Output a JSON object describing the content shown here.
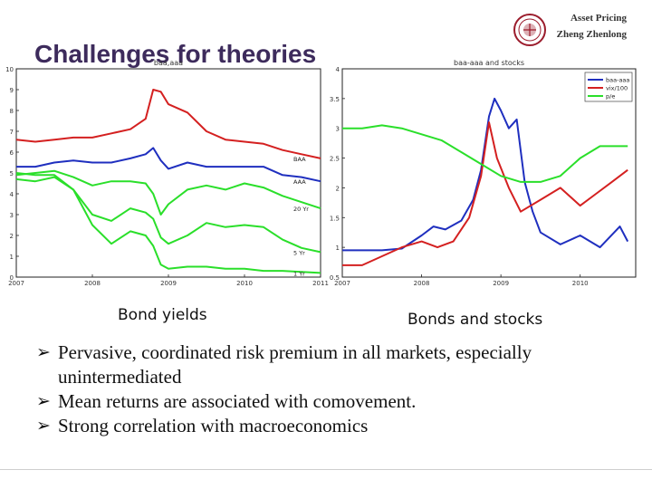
{
  "header": {
    "course": "Asset Pricing",
    "author": "Zheng Zhenlong"
  },
  "title": "Challenges for theories",
  "captions": {
    "left": "Bond yields",
    "right": "Bonds and stocks"
  },
  "bullets": [
    "Pervasive, coordinated risk premium in all markets, especially unintermediated",
    "Mean returns are associated with comovement.",
    "Strong correlation with macroeconomics"
  ],
  "colors": {
    "title": "#3d2b5c",
    "red": "#d42020",
    "blue": "#1f2fbf",
    "green": "#2adf2a"
  },
  "chart_data": [
    {
      "type": "line",
      "title": "baa,aaa",
      "x_ticks": [
        "2007",
        "2008",
        "2009",
        "2010",
        "2011"
      ],
      "ylim": [
        0,
        10
      ],
      "y_ticks": [
        "0",
        "1",
        "2",
        "3",
        "4",
        "5",
        "6",
        "7",
        "8",
        "9",
        "10"
      ],
      "series": [
        {
          "name": "BAA",
          "color": "#d42020",
          "x": [
            2007.0,
            2007.25,
            2007.5,
            2007.75,
            2008.0,
            2008.25,
            2008.5,
            2008.7,
            2008.8,
            2008.9,
            2009.0,
            2009.25,
            2009.5,
            2009.75,
            2010.0,
            2010.25,
            2010.5,
            2010.75,
            2011.0
          ],
          "values": [
            6.6,
            6.5,
            6.6,
            6.7,
            6.7,
            6.9,
            7.1,
            7.6,
            9.0,
            8.9,
            8.3,
            7.9,
            7.0,
            6.6,
            6.5,
            6.4,
            6.1,
            5.9,
            5.7
          ]
        },
        {
          "name": "AAA",
          "color": "#1f2fbf",
          "x": [
            2007.0,
            2007.25,
            2007.5,
            2007.75,
            2008.0,
            2008.25,
            2008.5,
            2008.7,
            2008.8,
            2008.9,
            2009.0,
            2009.25,
            2009.5,
            2009.75,
            2010.0,
            2010.25,
            2010.5,
            2010.75,
            2011.0
          ],
          "values": [
            5.3,
            5.3,
            5.5,
            5.6,
            5.5,
            5.5,
            5.7,
            5.9,
            6.2,
            5.6,
            5.2,
            5.5,
            5.3,
            5.3,
            5.3,
            5.3,
            4.9,
            4.8,
            4.6
          ]
        },
        {
          "name": "20 Yr",
          "color": "#2adf2a",
          "x": [
            2007.0,
            2007.25,
            2007.5,
            2007.75,
            2008.0,
            2008.25,
            2008.5,
            2008.7,
            2008.8,
            2008.9,
            2009.0,
            2009.25,
            2009.5,
            2009.75,
            2010.0,
            2010.25,
            2010.5,
            2010.75,
            2011.0
          ],
          "values": [
            4.9,
            5.0,
            5.1,
            4.8,
            4.4,
            4.6,
            4.6,
            4.5,
            4.0,
            3.0,
            3.5,
            4.2,
            4.4,
            4.2,
            4.5,
            4.3,
            3.9,
            3.6,
            3.3
          ]
        },
        {
          "name": "5 Yr",
          "color": "#2adf2a",
          "x": [
            2007.0,
            2007.25,
            2007.5,
            2007.75,
            2008.0,
            2008.25,
            2008.5,
            2008.7,
            2008.8,
            2008.9,
            2009.0,
            2009.25,
            2009.5,
            2009.75,
            2010.0,
            2010.25,
            2010.5,
            2010.75,
            2011.0
          ],
          "values": [
            4.7,
            4.6,
            4.8,
            4.2,
            3.0,
            2.7,
            3.3,
            3.1,
            2.8,
            1.9,
            1.6,
            2.0,
            2.6,
            2.4,
            2.5,
            2.4,
            1.8,
            1.4,
            1.2
          ]
        },
        {
          "name": "1 Yr",
          "color": "#2adf2a",
          "x": [
            2007.0,
            2007.25,
            2007.5,
            2007.75,
            2008.0,
            2008.25,
            2008.5,
            2008.7,
            2008.8,
            2008.9,
            2009.0,
            2009.25,
            2009.5,
            2009.75,
            2010.0,
            2010.25,
            2010.5,
            2010.75,
            2011.0
          ],
          "values": [
            5.0,
            4.9,
            4.9,
            4.2,
            2.5,
            1.6,
            2.2,
            2.0,
            1.5,
            0.6,
            0.4,
            0.5,
            0.5,
            0.4,
            0.4,
            0.3,
            0.3,
            0.25,
            0.2
          ]
        }
      ]
    },
    {
      "type": "line",
      "title": "baa-aaa and stocks",
      "x_ticks": [
        "2007",
        "2008",
        "2009",
        "2010"
      ],
      "ylim": [
        0.5,
        4
      ],
      "y_ticks": [
        "0.5",
        "1",
        "1.5",
        "2",
        "2.5",
        "3",
        "3.5",
        "4"
      ],
      "series": [
        {
          "name": "baa-aaa",
          "color": "#1f2fbf",
          "x": [
            2007.0,
            2007.25,
            2007.5,
            2007.75,
            2008.0,
            2008.15,
            2008.3,
            2008.5,
            2008.65,
            2008.75,
            2008.85,
            2008.92,
            2009.0,
            2009.1,
            2009.2,
            2009.3,
            2009.4,
            2009.5,
            2009.75,
            2010.0,
            2010.25,
            2010.5,
            2010.6
          ],
          "values": [
            0.95,
            0.95,
            0.95,
            0.98,
            1.2,
            1.35,
            1.3,
            1.45,
            1.8,
            2.3,
            3.2,
            3.5,
            3.3,
            3.0,
            3.15,
            2.1,
            1.6,
            1.25,
            1.05,
            1.2,
            1.0,
            1.35,
            1.1
          ]
        },
        {
          "name": "vix/100",
          "color": "#d42020",
          "x": [
            2007.0,
            2007.25,
            2007.5,
            2007.75,
            2008.0,
            2008.2,
            2008.4,
            2008.6,
            2008.75,
            2008.85,
            2008.95,
            2009.1,
            2009.25,
            2009.5,
            2009.75,
            2010.0,
            2010.2,
            2010.4,
            2010.6
          ],
          "values": [
            0.7,
            0.7,
            0.85,
            1.0,
            1.1,
            1.0,
            1.1,
            1.5,
            2.2,
            3.1,
            2.5,
            2.0,
            1.6,
            1.8,
            2.0,
            1.7,
            1.9,
            2.1,
            2.3
          ]
        },
        {
          "name": "p/e",
          "color": "#2adf2a",
          "x": [
            2007.0,
            2007.25,
            2007.5,
            2007.75,
            2008.0,
            2008.25,
            2008.5,
            2008.75,
            2009.0,
            2009.25,
            2009.5,
            2009.75,
            2010.0,
            2010.25,
            2010.5,
            2010.6
          ],
          "values": [
            3.0,
            3.0,
            3.05,
            3.0,
            2.9,
            2.8,
            2.6,
            2.4,
            2.2,
            2.1,
            2.1,
            2.2,
            2.5,
            2.7,
            2.7,
            2.7
          ]
        }
      ]
    }
  ]
}
